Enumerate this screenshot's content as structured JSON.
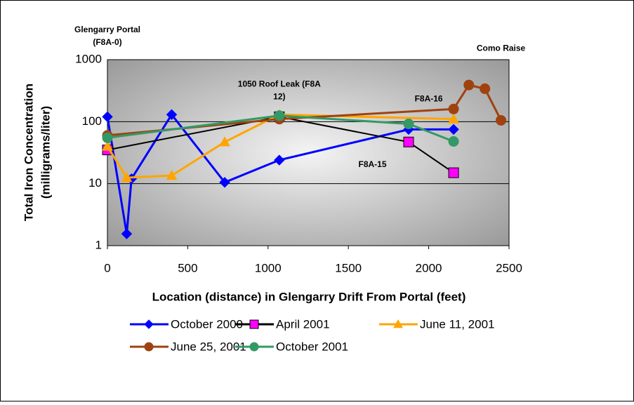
{
  "chart_data": {
    "type": "line",
    "xlabel": "Location (distance) in Glengarry Drift From Portal (feet)",
    "ylabel": [
      "Total Iron Concentration",
      "(milligrams/liter)"
    ],
    "xlim": [
      0,
      2500
    ],
    "xticks": [
      0,
      500,
      1000,
      1500,
      2000,
      2500
    ],
    "ylim": [
      1,
      1000
    ],
    "yticks": [
      1,
      10,
      100,
      1000
    ],
    "log_y": true,
    "grid": true,
    "legend": "bottom",
    "series": [
      {
        "name": "October 2000",
        "color": "#0000ff",
        "marker": "diamond",
        "marker_color": "#0000ff",
        "x": [
          0,
          120,
          150,
          400,
          730,
          1070,
          1875,
          2155
        ],
        "values": [
          120,
          1.55,
          12,
          130,
          10.5,
          24,
          75,
          75
        ]
      },
      {
        "name": "April 2001",
        "color": "#000000",
        "marker": "square",
        "marker_color": "#ff00ff",
        "x": [
          0,
          1070,
          1875,
          2155
        ],
        "values": [
          35,
          120,
          47,
          15
        ]
      },
      {
        "name": "June 11, 2001",
        "color": "#ffa500",
        "marker": "triangle",
        "marker_color": "#ffa500",
        "x": [
          0,
          120,
          400,
          730,
          1070,
          2155
        ],
        "values": [
          40,
          12.5,
          13.5,
          47,
          130,
          110
        ]
      },
      {
        "name": "June 25, 2001",
        "color": "#a0420f",
        "marker": "circle",
        "marker_color": "#a0420f",
        "x": [
          0,
          1070,
          2155,
          2250,
          2350,
          2450
        ],
        "values": [
          60,
          110,
          160,
          390,
          340,
          105
        ]
      },
      {
        "name": "October 2001",
        "color": "#339966",
        "marker": "circle",
        "marker_color": "#339966",
        "x": [
          0,
          1070,
          1875,
          2155
        ],
        "values": [
          55,
          125,
          92,
          48
        ]
      }
    ],
    "annotations": [
      {
        "lines": [
          "Glengarry Portal",
          "(F8A-0)"
        ],
        "x": 0,
        "y": 3000
      },
      {
        "lines": [
          "Como Raise"
        ],
        "x": 2450,
        "y": 1500
      },
      {
        "lines": [
          "1050 Roof Leak (F8A",
          "12)"
        ],
        "x": 1070,
        "y": 400
      },
      {
        "lines": [
          "F8A-16"
        ],
        "x": 2000,
        "y": 230
      },
      {
        "lines": [
          "F8A-15"
        ],
        "x": 1650,
        "y": 20
      }
    ]
  }
}
